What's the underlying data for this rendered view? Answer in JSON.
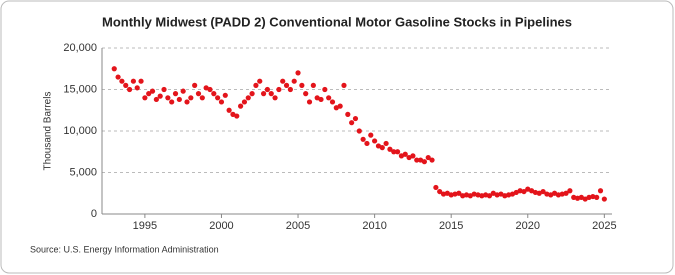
{
  "chart_data": {
    "type": "scatter",
    "title": "Monthly Midwest (PADD 2) Conventional Motor Gasoline Stocks in Pipelines",
    "y_label": "Thousand Barrels",
    "source": "Source: U.S. Energy Information Administration",
    "color": "#e3141b",
    "grid": true,
    "xlim": [
      1992.2,
      2025.5
    ],
    "xticks": [
      1995,
      2000,
      2005,
      2010,
      2015,
      2020,
      2025
    ],
    "ylim": [
      0,
      20000
    ],
    "yticks": [
      0,
      {
        "value": 5000,
        "label": "5,000"
      },
      {
        "value": 10000,
        "label": "10,000"
      },
      {
        "value": 15000,
        "label": "15,000"
      },
      {
        "value": 20000,
        "label": "20,000"
      }
    ],
    "x": [
      1993,
      1993.25,
      1993.5,
      1993.75,
      1994,
      1994.25,
      1994.5,
      1994.75,
      1995,
      1995.25,
      1995.5,
      1995.75,
      1996,
      1996.25,
      1996.5,
      1996.75,
      1997,
      1997.25,
      1997.5,
      1997.75,
      1998,
      1998.25,
      1998.5,
      1998.75,
      1999,
      1999.25,
      1999.5,
      1999.75,
      2000,
      2000.25,
      2000.5,
      2000.75,
      2001,
      2001.25,
      2001.5,
      2001.75,
      2002,
      2002.25,
      2002.5,
      2002.75,
      2003,
      2003.25,
      2003.5,
      2003.75,
      2004,
      2004.25,
      2004.5,
      2004.75,
      2005,
      2005.25,
      2005.5,
      2005.75,
      2006,
      2006.25,
      2006.5,
      2006.75,
      2007,
      2007.25,
      2007.5,
      2007.75,
      2008,
      2008.25,
      2008.5,
      2008.75,
      2009,
      2009.25,
      2009.5,
      2009.75,
      2010,
      2010.25,
      2010.5,
      2010.75,
      2011,
      2011.25,
      2011.5,
      2011.75,
      2012,
      2012.25,
      2012.5,
      2012.75,
      2013,
      2013.25,
      2013.5,
      2013.75,
      2014,
      2014.25,
      2014.5,
      2014.75,
      2015,
      2015.25,
      2015.5,
      2015.75,
      2016,
      2016.25,
      2016.5,
      2016.75,
      2017,
      2017.25,
      2017.5,
      2017.75,
      2018,
      2018.25,
      2018.5,
      2018.75,
      2019,
      2019.25,
      2019.5,
      2019.75,
      2020,
      2020.25,
      2020.5,
      2020.75,
      2021,
      2021.25,
      2021.5,
      2021.75,
      2022,
      2022.25,
      2022.5,
      2022.75,
      2023,
      2023.25,
      2023.5,
      2023.75,
      2024,
      2024.25,
      2024.5,
      2024.75,
      2025
    ],
    "values": [
      17500,
      16500,
      16000,
      15500,
      15000,
      16000,
      15200,
      16000,
      14000,
      14500,
      14800,
      13800,
      14200,
      15000,
      14000,
      13500,
      14500,
      13800,
      14800,
      13500,
      14000,
      15500,
      14500,
      14000,
      15200,
      15000,
      14500,
      14000,
      13500,
      14300,
      12500,
      12000,
      11800,
      13000,
      13500,
      14000,
      14500,
      15500,
      16000,
      14500,
      15000,
      14500,
      14000,
      15000,
      16000,
      15500,
      15000,
      16000,
      17000,
      15500,
      14500,
      13500,
      15500,
      14000,
      13800,
      15000,
      14000,
      13500,
      12800,
      13000,
      15500,
      12000,
      11000,
      11500,
      10000,
      9000,
      8500,
      9500,
      8800,
      8200,
      8000,
      8500,
      7800,
      7500,
      7500,
      7000,
      7200,
      6800,
      7000,
      6500,
      6500,
      6300,
      6800,
      6500,
      3200,
      2700,
      2400,
      2500,
      2300,
      2400,
      2500,
      2200,
      2300,
      2200,
      2400,
      2300,
      2200,
      2300,
      2200,
      2500,
      2300,
      2400,
      2200,
      2300,
      2400,
      2600,
      2800,
      2700,
      3000,
      2800,
      2600,
      2500,
      2700,
      2400,
      2300,
      2500,
      2300,
      2400,
      2500,
      2800,
      2000,
      1900,
      2000,
      1800,
      2000,
      2100,
      2000,
      2800,
      1800
    ]
  }
}
